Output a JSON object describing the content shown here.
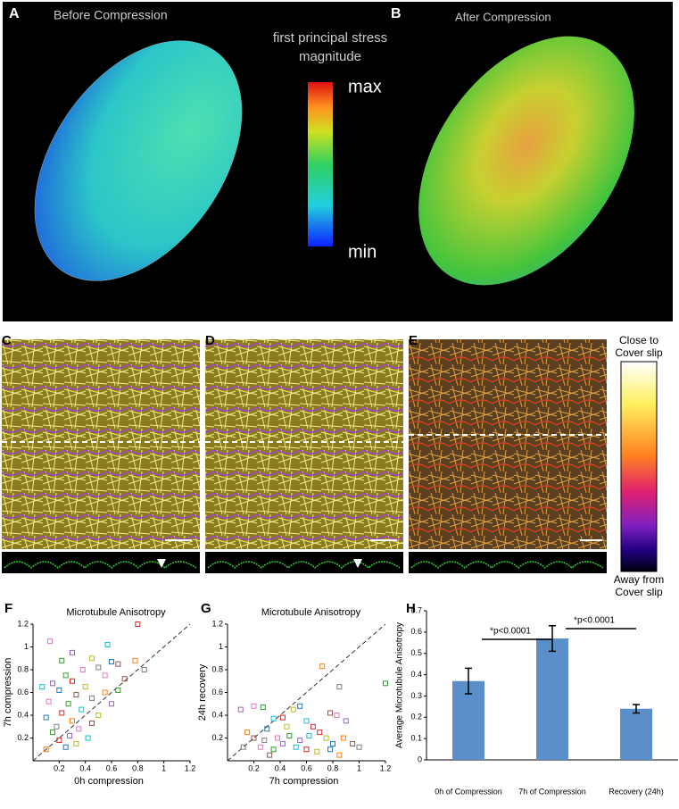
{
  "figure": {
    "panel_labels": [
      "A",
      "B",
      "C",
      "D",
      "E"
    ],
    "panel_titles": [
      "Before Compression",
      "After Compression"
    ],
    "stress_legend": {
      "title": [
        "first principal stress",
        "magnitude"
      ],
      "max": "max",
      "min": "min"
    },
    "depth_legend": {
      "top": [
        "Close to",
        "Cover slip"
      ],
      "bottom": [
        "Away from",
        "Cover slip"
      ]
    }
  },
  "chart_data": [
    {
      "type": "scatter",
      "label": "F",
      "title": "Microtubule Anisotropy",
      "x_label": "0h    compression",
      "y_label": "7h  compression",
      "x": [
        0.13,
        0.22,
        0.3,
        0.57,
        0.8,
        0.45,
        0.6,
        0.78,
        0.65,
        0.5,
        0.38,
        0.25,
        0.15,
        0.07,
        0.3,
        0.4,
        0.2,
        0.55,
        0.33,
        0.45,
        0.12,
        0.27,
        0.6,
        0.37,
        0.22,
        0.5,
        0.1,
        0.3,
        0.45,
        0.18,
        0.35,
        0.15,
        0.28,
        0.42,
        0.2,
        0.33,
        0.25,
        0.1,
        0.7,
        0.85,
        0.55,
        0.65
      ],
      "values": [
        1.05,
        0.88,
        0.95,
        1.02,
        1.2,
        0.9,
        0.87,
        0.88,
        0.85,
        0.82,
        0.8,
        0.75,
        0.68,
        0.65,
        0.7,
        0.65,
        0.62,
        0.6,
        0.58,
        0.55,
        0.52,
        0.5,
        0.5,
        0.45,
        0.42,
        0.4,
        0.38,
        0.35,
        0.33,
        0.3,
        0.28,
        0.25,
        0.22,
        0.2,
        0.18,
        0.15,
        0.12,
        0.1,
        0.72,
        0.8,
        0.75,
        0.62
      ],
      "palette": [
        "#e377c2",
        "#2ca02c",
        "#9467bd",
        "#17becf",
        "#d62728",
        "#bcbd22",
        "#1f77b4",
        "#ff7f0e",
        "#8c564b",
        "#7f7f7f"
      ],
      "xlim": [
        0,
        1.2
      ],
      "ylim": [
        0,
        1.2
      ],
      "xticks": [
        0.2,
        0.4,
        0.6,
        0.8,
        1,
        1.2
      ],
      "yticks": [
        0.2,
        0.4,
        0.6,
        0.8,
        1,
        1.2
      ],
      "diagonal": true
    },
    {
      "type": "scatter",
      "label": "G",
      "title": "Microtubule Anisotropy",
      "x_label": "7h  compression",
      "y_label": "24h  recovery",
      "x": [
        0.2,
        0.27,
        0.1,
        0.35,
        0.42,
        0.5,
        0.55,
        0.72,
        0.78,
        0.85,
        0.83,
        1.2,
        0.9,
        0.6,
        0.65,
        0.45,
        0.3,
        0.15,
        0.2,
        0.28,
        0.38,
        0.47,
        0.55,
        0.62,
        0.7,
        0.75,
        0.8,
        0.88,
        0.95,
        1.0,
        0.25,
        0.35,
        0.42,
        0.52,
        0.6,
        0.68,
        0.78,
        0.85,
        0.32,
        0.12
      ],
      "values": [
        0.48,
        0.47,
        0.45,
        0.37,
        0.38,
        0.45,
        0.48,
        0.83,
        0.42,
        0.65,
        0.4,
        0.68,
        0.35,
        0.35,
        0.3,
        0.3,
        0.28,
        0.25,
        0.2,
        0.18,
        0.2,
        0.22,
        0.18,
        0.22,
        0.25,
        0.2,
        0.15,
        0.2,
        0.15,
        0.12,
        0.12,
        0.1,
        0.15,
        0.12,
        0.1,
        0.08,
        0.1,
        0.05,
        0.05,
        0.12
      ],
      "palette": [
        "#e377c2",
        "#2ca02c",
        "#9467bd",
        "#17becf",
        "#d62728",
        "#bcbd22",
        "#1f77b4",
        "#ff7f0e",
        "#8c564b",
        "#7f7f7f"
      ],
      "xlim": [
        0,
        1.2
      ],
      "ylim": [
        0,
        1.2
      ],
      "xticks": [
        0.2,
        0.4,
        0.6,
        0.8,
        1,
        1.2
      ],
      "yticks": [
        0.2,
        0.4,
        0.6,
        0.8,
        1,
        1.2
      ],
      "diagonal": true
    },
    {
      "type": "bar",
      "label": "H",
      "y_label": "Average Microtubule Anisotropy",
      "categories": [
        "0h of Compression",
        "7h of Compression",
        "Recovery (24h)"
      ],
      "values": [
        0.37,
        0.57,
        0.24
      ],
      "errors": [
        0.06,
        0.06,
        0.02
      ],
      "color": "#5b8fc9",
      "ylim": [
        0,
        0.7
      ],
      "yticks": [
        0,
        0.1,
        0.2,
        0.3,
        0.4,
        0.5,
        0.6,
        0.7
      ],
      "annotations": [
        "*p<0.0001",
        "*p<0.0001"
      ]
    }
  ]
}
